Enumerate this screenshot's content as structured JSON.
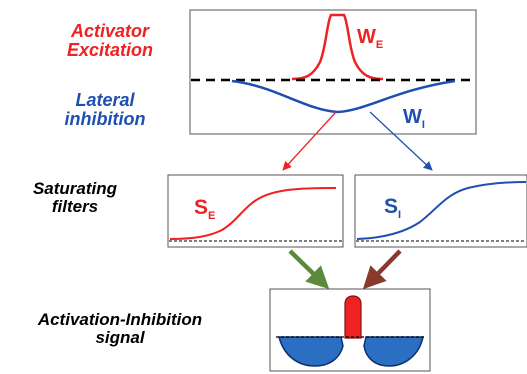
{
  "labels": {
    "activator": [
      "Activator",
      "Excitation"
    ],
    "lateral": [
      "Lateral",
      "inhibition"
    ],
    "saturating": [
      "Saturating",
      "filters"
    ],
    "signal": [
      "Activation-Inhibition",
      "signal"
    ]
  },
  "symbols": {
    "w_excitation": {
      "main": "W",
      "sub": "E"
    },
    "w_inhibition": {
      "main": "W",
      "sub": "I"
    },
    "s_excitation": {
      "main": "S",
      "sub": "E"
    },
    "s_inhibition": {
      "main": "S",
      "sub": "I"
    }
  },
  "colors": {
    "excitation": "#ee2222",
    "inhibition": "#1f4fb0",
    "arrow_green": "#5b8a3a",
    "arrow_brown": "#8a3a2c",
    "baseline": "#000000"
  }
}
